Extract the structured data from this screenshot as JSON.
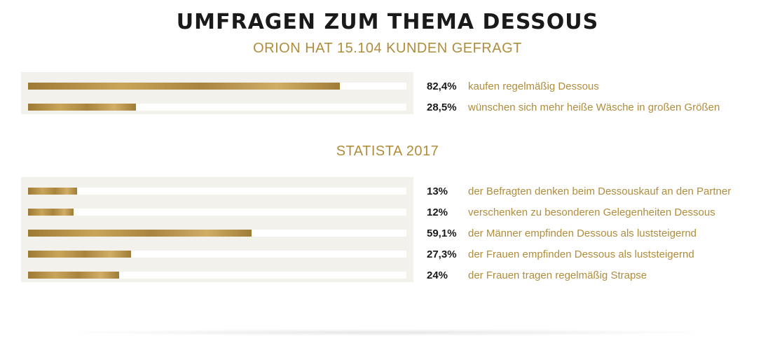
{
  "title": "UMFRAGEN ZUM THEMA DESSOUS",
  "chart_data": [
    {
      "type": "bar",
      "orientation": "horizontal",
      "subtitle": "ORION HAT 15.104 KUNDEN GEFRAGT",
      "xlim": [
        0,
        100
      ],
      "categories": [
        "kaufen regelmäßig Dessous",
        "wünschen sich mehr heiße Wäsche in großen Größen"
      ],
      "values": [
        82.4,
        28.5
      ],
      "value_labels": [
        "82,4%",
        "28,5%"
      ]
    },
    {
      "type": "bar",
      "orientation": "horizontal",
      "subtitle": "STATISTA 2017",
      "xlim": [
        0,
        100
      ],
      "categories": [
        "der Befragten denken beim Dessouskauf an den Partner",
        "verschenken zu besonderen Gelegenheiten Dessous",
        "der Männer empfinden Dessous als luststeigernd",
        "der Frauen empfinden Dessous als luststeigernd",
        "der Frauen tragen regelmäßig Strapse"
      ],
      "values": [
        13,
        12,
        59.1,
        27.3,
        24
      ],
      "value_labels": [
        "13%",
        "12%",
        "59,1%",
        "27,3%",
        "24%"
      ]
    }
  ]
}
